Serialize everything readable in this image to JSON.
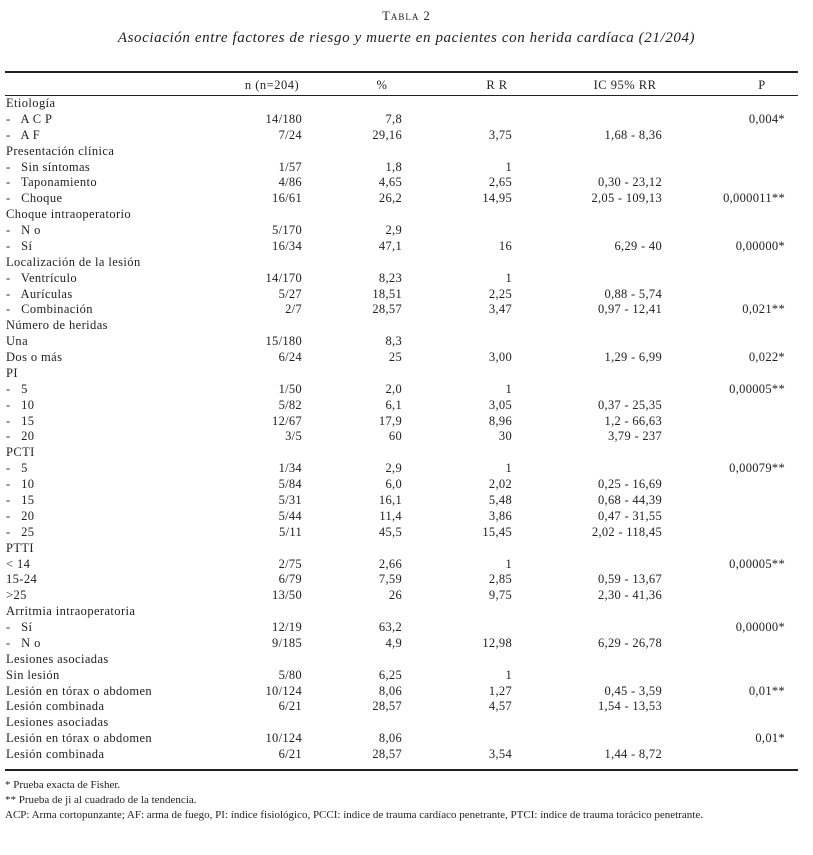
{
  "header": {
    "label": "Tabla 2",
    "title": "Asociación entre factores de riesgo y muerte en pacientes con herida cardíaca (21/204)"
  },
  "table": {
    "columns": [
      null,
      "n (n=204)",
      "%",
      "R R",
      "IC 95% RR",
      "P"
    ],
    "rows": [
      [
        "Etiología"
      ],
      [
        "-   A C P",
        "14/180",
        "7,8",
        null,
        null,
        "0,004*"
      ],
      [
        "-   A F",
        "7/24",
        "29,16",
        "3,75",
        "1,68 - 8,36",
        null
      ],
      [
        "Presentación clínica"
      ],
      [
        "-   Sin síntomas",
        "1/57",
        "1,8",
        "1",
        null,
        null
      ],
      [
        "-   Taponamiento",
        "4/86",
        "4,65",
        "2,65",
        "0,30 - 23,12",
        null
      ],
      [
        "-   Choque",
        "16/61",
        "26,2",
        "14,95",
        "2,05 - 109,13",
        "0,000011**"
      ],
      [
        "Choque intraoperatorio"
      ],
      [
        "-   N o",
        "5/170",
        "2,9",
        null,
        null,
        null
      ],
      [
        "-   Sí",
        "16/34",
        "47,1",
        "16",
        "6,29 - 40",
        "0,00000*"
      ],
      [
        "Localización de la lesión"
      ],
      [
        "-   Ventrículo",
        "14/170",
        "8,23",
        "1",
        null,
        null
      ],
      [
        "-   Aurículas",
        "5/27",
        "18,51",
        "2,25",
        "0,88 - 5,74",
        null
      ],
      [
        "-   Combinación",
        "2/7",
        "28,57",
        "3,47",
        "0,97 - 12,41",
        "0,021**"
      ],
      [
        "Número de heridas"
      ],
      [
        "Una",
        "15/180",
        "8,3",
        null,
        null,
        null
      ],
      [
        "Dos o más",
        "6/24",
        "25",
        "3,00",
        "1,29 - 6,99",
        "0,022*"
      ],
      [
        "PI"
      ],
      [
        "-   5",
        "1/50",
        "2,0",
        "1",
        null,
        "0,00005**"
      ],
      [
        "-   10",
        "5/82",
        "6,1",
        "3,05",
        "0,37 - 25,35",
        null
      ],
      [
        "-   15",
        "12/67",
        "17,9",
        "8,96",
        "1,2 - 66,63",
        null
      ],
      [
        "-   20",
        "3/5",
        "60",
        "30",
        "3,79 - 237",
        null
      ],
      [
        "PCTI"
      ],
      [
        "-   5",
        "1/34",
        "2,9",
        "1",
        null,
        "0,00079**"
      ],
      [
        "-   10",
        "5/84",
        "6,0",
        "2,02",
        "0,25 - 16,69",
        null
      ],
      [
        "-   15",
        "5/31",
        "16,1",
        "5,48",
        "0,68 - 44,39",
        null
      ],
      [
        "-   20",
        "5/44",
        "11,4",
        "3,86",
        "0,47 - 31,55",
        null
      ],
      [
        "-   25",
        "5/11",
        "45,5",
        "15,45",
        "2,02 - 118,45",
        null
      ],
      [
        "PTTI"
      ],
      [
        "< 14",
        "2/75",
        "2,66",
        "1",
        null,
        "0,00005**"
      ],
      [
        "15-24",
        "6/79",
        "7,59",
        "2,85",
        "0,59 - 13,67",
        null
      ],
      [
        ">25",
        "13/50",
        "26",
        "9,75",
        "2,30 - 41,36",
        null
      ],
      [
        "Arritmia intraoperatoria"
      ],
      [
        "-   Sí",
        "12/19",
        "63,2",
        null,
        null,
        "0,00000*"
      ],
      [
        "-   N o",
        "9/185",
        "4,9",
        "12,98",
        "6,29 - 26,78",
        null
      ],
      [
        "Lesiones asociadas"
      ],
      [
        "Sin lesión",
        "5/80",
        "6,25",
        "1",
        null,
        null
      ],
      [
        "Lesión en tórax o abdomen",
        "10/124",
        "8,06",
        "1,27",
        "0,45 - 3,59",
        "0,01**"
      ],
      [
        "Lesión combinada",
        "6/21",
        "28,57",
        "4,57",
        "1,54 - 13,53",
        null
      ],
      [
        "Lesiones asociadas"
      ],
      [
        "Lesión en tórax o abdomen",
        "10/124",
        "8,06",
        null,
        null,
        "0,01*"
      ],
      [
        "Lesión combinada",
        "6/21",
        "28,57",
        "3,54",
        "1,44 - 8,72",
        null
      ]
    ]
  },
  "footnotes": [
    "* Prueba exacta de Fisher.",
    "** Prueba de ji al cuadrado de la tendencia.",
    "ACP: Arma cortopunzante; AF: arma de fuego, PI: índice fisiológico, PCCI: índice de trauma cardíaco penetrante, PTCI: índice de trauma torácico penetrante."
  ]
}
